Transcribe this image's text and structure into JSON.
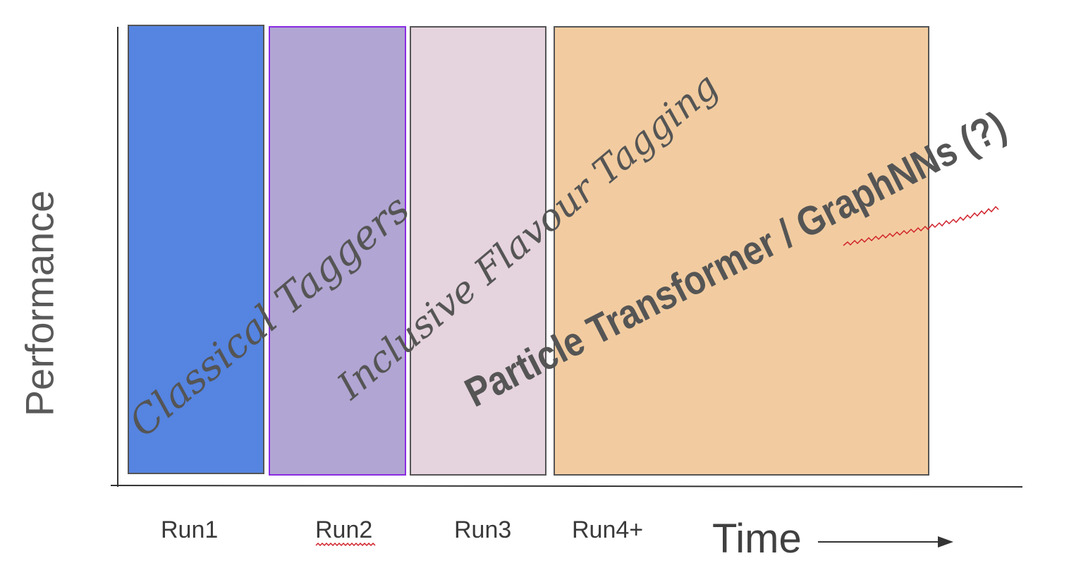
{
  "axis": {
    "y_label": "Performance",
    "x_label": "Time"
  },
  "runs": [
    {
      "label": "Run1",
      "color": "#5584e1"
    },
    {
      "label": "Run2",
      "color": "#b1a5d3"
    },
    {
      "label": "Run3",
      "color": "#e5d3dd"
    },
    {
      "label": "Run4+",
      "color": "#f2cca0"
    }
  ],
  "eras": [
    {
      "label": "Classical Taggers"
    },
    {
      "label": "Inclusive Flavour Tagging"
    },
    {
      "label": "Particle Transformer / GraphNNs (?)"
    }
  ],
  "colors": {
    "axis": "#333333",
    "box_border": "#555555",
    "run2_border": "#8a2be2",
    "overlay_text": "#555555",
    "spellcheck": "#d0202a"
  }
}
